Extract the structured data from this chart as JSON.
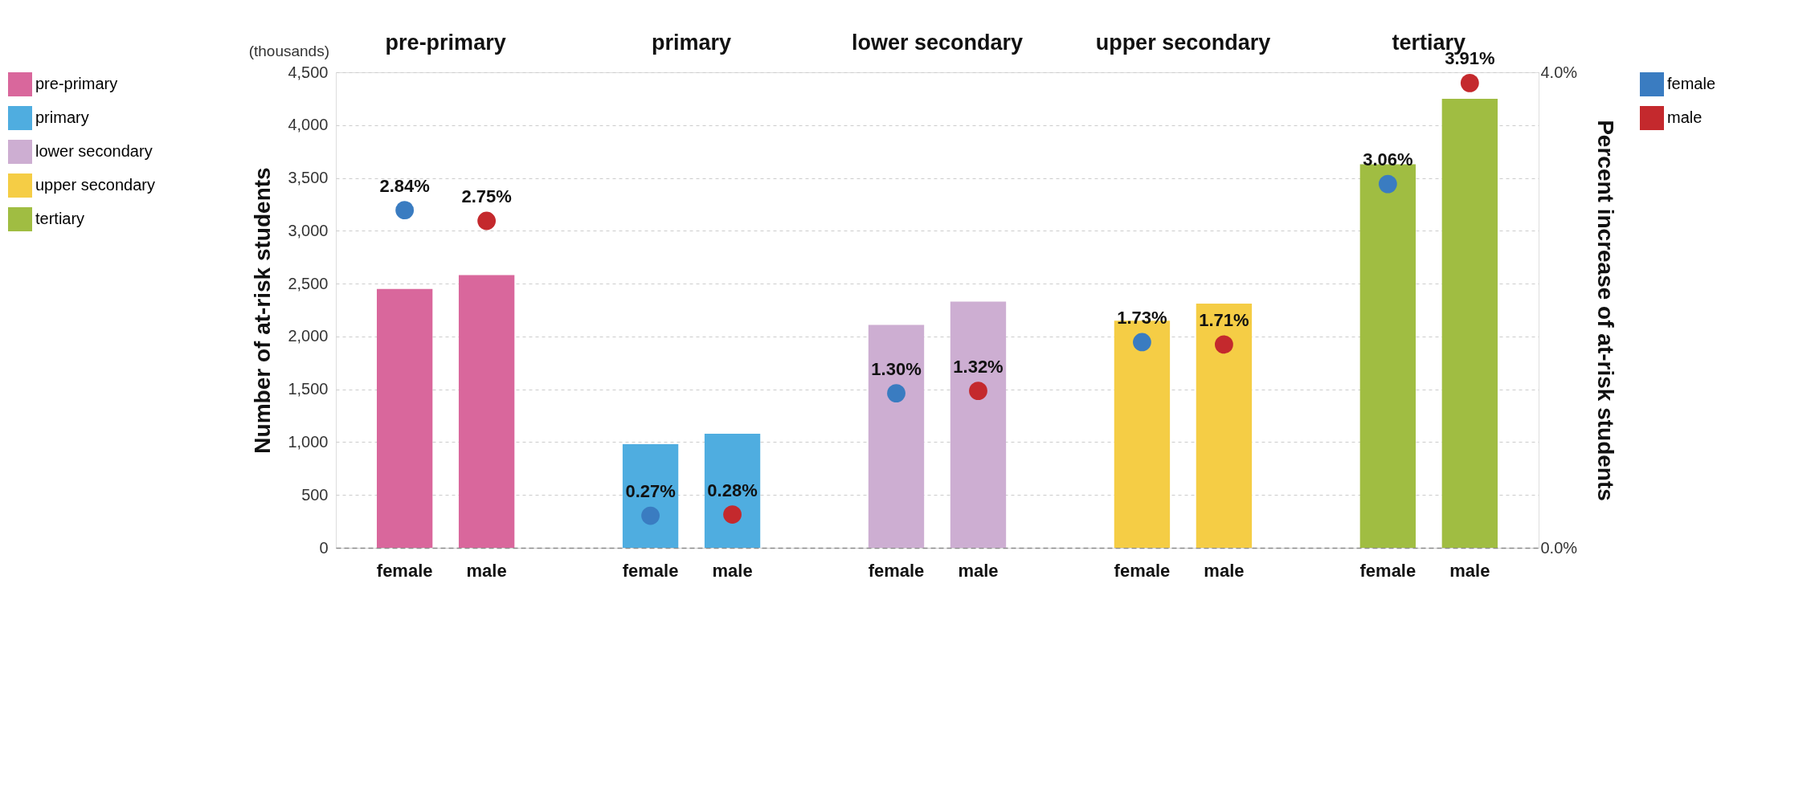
{
  "chart_data": {
    "type": "bar",
    "ylabel": "Number of at-risk students",
    "y2label": "Percent increase of at-risk students",
    "categories": [
      "female",
      "male",
      "female",
      "male",
      "female",
      "male",
      "female",
      "male",
      "female",
      "male"
    ],
    "annotations": [
      "(thousands)"
    ],
    "legend": "left",
    "grid": "y",
    "series": [
      {
        "name": "pre-primary",
        "color": "#d9679c",
        "values": [
          2450,
          2580,
          null,
          null,
          null,
          null,
          null,
          null,
          null,
          null
        ]
      },
      {
        "name": "primary",
        "color": "#4fade0",
        "values": [
          null,
          null,
          980,
          1080,
          null,
          null,
          null,
          null,
          null,
          null
        ]
      },
      {
        "name": "lower secondary",
        "color": "#cdaed2",
        "values": [
          null,
          null,
          null,
          null,
          2110,
          2330,
          null,
          null,
          null,
          null
        ]
      },
      {
        "name": "upper secondary",
        "color": "#f5cd45",
        "values": [
          null,
          null,
          null,
          null,
          null,
          null,
          2150,
          2310,
          null,
          null
        ]
      },
      {
        "name": "tertiary",
        "color": "#a0bd42",
        "values": [
          null,
          null,
          null,
          null,
          null,
          null,
          null,
          null,
          3630,
          4250
        ]
      },
      {
        "type": "scatter",
        "name": "female",
        "color": "#3a7cc1",
        "axis": "y2",
        "values": [
          2.84,
          null,
          0.27,
          null,
          1.3,
          null,
          1.73,
          null,
          3.06,
          null
        ],
        "value_labels": [
          "2.84%",
          null,
          "0.27%",
          null,
          "1.30%",
          null,
          "1.73%",
          null,
          "3.06%",
          null
        ]
      },
      {
        "type": "scatter",
        "name": "male",
        "color": "#c4292d",
        "axis": "y2",
        "values": [
          null,
          2.75,
          null,
          0.28,
          null,
          1.32,
          null,
          1.71,
          null,
          3.91
        ],
        "value_labels": [
          null,
          "2.75%",
          null,
          "0.28%",
          null,
          "1.32%",
          null,
          "1.71%",
          null,
          "3.91%"
        ]
      }
    ],
    "ylim": [
      0,
      4500
    ],
    "yticks": [
      {
        "value": 0,
        "label": "0"
      },
      {
        "value": 500,
        "label": "500"
      },
      {
        "value": 1000,
        "label": "1,000"
      },
      {
        "value": 1500,
        "label": "1,500"
      },
      {
        "value": 2000,
        "label": "2,000"
      },
      {
        "value": 2500,
        "label": "2,500"
      },
      {
        "value": 3000,
        "label": "3,000"
      },
      {
        "value": 3500,
        "label": "3,500"
      },
      {
        "value": 4000,
        "label": "4,000"
      },
      {
        "value": 4500,
        "label": "4,500"
      }
    ],
    "y2lim": [
      0,
      4.0
    ],
    "y2ticks": [
      {
        "value": 0,
        "label": "0.0%"
      },
      {
        "value": 4,
        "label": "4.0%"
      }
    ]
  }
}
